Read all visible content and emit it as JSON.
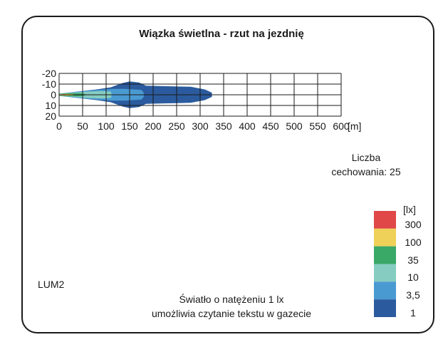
{
  "chart_data": {
    "type": "heatmap",
    "title": "Wiązka świetlna - rzut na jezdnię",
    "x_unit_label": "[m]",
    "x_ticks": [
      "0",
      "50",
      "100",
      "150",
      "200",
      "250",
      "300",
      "350",
      "400",
      "450",
      "500",
      "550",
      "600"
    ],
    "y_ticks": [
      "-20",
      "-10",
      "0",
      "10",
      "20"
    ],
    "xlim": [
      0,
      600
    ],
    "ylim": [
      -20,
      20
    ],
    "legend_unit": "[lx]",
    "levels": [
      {
        "label": "300",
        "color": "#e04848"
      },
      {
        "label": "100",
        "color": "#efd058"
      },
      {
        "label": "35",
        "color": "#3aa867"
      },
      {
        "label": "10",
        "color": "#86ccc0"
      },
      {
        "label": "3,5",
        "color": "#4a9ad2"
      },
      {
        "label": "1",
        "color": "#2b5b9e"
      }
    ],
    "isolines": [
      {
        "level": "1",
        "color": "#2b5b9e",
        "points": [
          [
            0,
            -1
          ],
          [
            40,
            -3
          ],
          [
            80,
            -5
          ],
          [
            110,
            -7
          ],
          [
            135,
            -11
          ],
          [
            150,
            -12.5
          ],
          [
            170,
            -11.5
          ],
          [
            185,
            -8.5
          ],
          [
            230,
            -8
          ],
          [
            280,
            -7.5
          ],
          [
            310,
            -5
          ],
          [
            325,
            -2
          ],
          [
            325,
            2
          ],
          [
            310,
            5
          ],
          [
            280,
            7.5
          ],
          [
            230,
            8
          ],
          [
            185,
            8.5
          ],
          [
            170,
            11.5
          ],
          [
            150,
            12.5
          ],
          [
            135,
            11
          ],
          [
            110,
            7
          ],
          [
            80,
            5
          ],
          [
            40,
            3
          ],
          [
            0,
            1
          ]
        ]
      },
      {
        "level": "3,5",
        "color": "#4a9ad2",
        "points": [
          [
            0,
            -1
          ],
          [
            40,
            -3
          ],
          [
            80,
            -4.5
          ],
          [
            110,
            -5.5
          ],
          [
            140,
            -5.5
          ],
          [
            175,
            -4.5
          ],
          [
            180,
            -2
          ],
          [
            180,
            2
          ],
          [
            175,
            4.5
          ],
          [
            140,
            5.5
          ],
          [
            110,
            5.5
          ],
          [
            80,
            4.5
          ],
          [
            40,
            3
          ],
          [
            0,
            1
          ]
        ]
      },
      {
        "level": "10",
        "color": "#86ccc0",
        "points": [
          [
            0,
            -1
          ],
          [
            30,
            -2
          ],
          [
            60,
            -3
          ],
          [
            90,
            -3.5
          ],
          [
            110,
            -3
          ],
          [
            112,
            0
          ],
          [
            110,
            3
          ],
          [
            90,
            3.5
          ],
          [
            60,
            3
          ],
          [
            30,
            2
          ],
          [
            0,
            1
          ]
        ]
      },
      {
        "level": "35",
        "color": "#3aa867",
        "points": [
          [
            0,
            -0.9
          ],
          [
            20,
            -1.4
          ],
          [
            45,
            -1.5
          ],
          [
            55,
            -0.8
          ],
          [
            55,
            0.8
          ],
          [
            45,
            1.5
          ],
          [
            20,
            1.4
          ],
          [
            0,
            0.9
          ]
        ]
      },
      {
        "level": "100",
        "color": "#efd058",
        "points": [
          [
            0,
            -0.6
          ],
          [
            15,
            -0.9
          ],
          [
            30,
            -0.6
          ],
          [
            32,
            0
          ],
          [
            30,
            0.6
          ],
          [
            15,
            0.9
          ],
          [
            0,
            0.6
          ]
        ]
      },
      {
        "level": "300",
        "color": "#e04848",
        "points": [
          [
            2,
            -0.3
          ],
          [
            12,
            -0.5
          ],
          [
            20,
            0
          ],
          [
            12,
            0.5
          ],
          [
            2,
            0.3
          ]
        ]
      }
    ]
  },
  "count_label": "Liczba\ncechowania: 25",
  "count_line1": "Liczba",
  "count_line2": "cechowania: 25",
  "lum_label": "LUM2",
  "note_line1": "Światło o natężeniu 1 lx",
  "note_line2": "umożliwia czytanie tekstu w gazecie"
}
